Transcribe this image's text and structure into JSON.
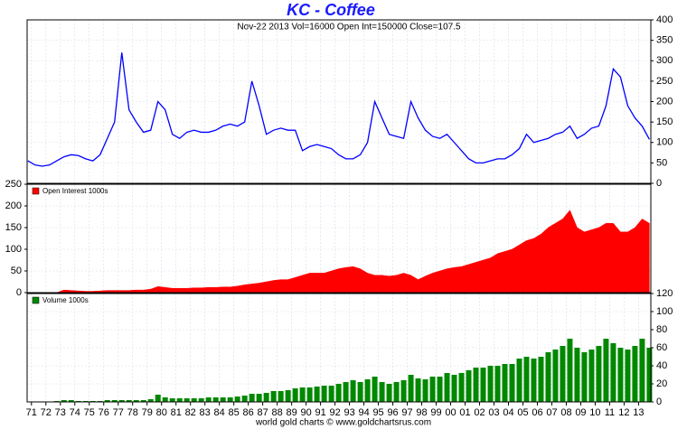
{
  "chart_data": [
    {
      "type": "line",
      "title": "KC  -  Coffee",
      "subtitle": "Nov-22  2013   Vol=16000   Open Int=150000   Close=107.5",
      "x": [
        1970.75,
        1971.25,
        1971.75,
        1972.25,
        1972.75,
        1973.25,
        1973.75,
        1974.25,
        1974.75,
        1975.25,
        1975.75,
        1976.25,
        1976.75,
        1977.25,
        1977.75,
        1978.25,
        1978.75,
        1979.25,
        1979.75,
        1980.25,
        1980.75,
        1981.25,
        1981.75,
        1982.25,
        1982.75,
        1983.25,
        1983.75,
        1984.25,
        1984.75,
        1985.25,
        1985.75,
        1986.25,
        1986.75,
        1987.25,
        1987.75,
        1988.25,
        1988.75,
        1989.25,
        1989.75,
        1990.25,
        1990.75,
        1991.25,
        1991.75,
        1992.25,
        1992.75,
        1993.25,
        1993.75,
        1994.25,
        1994.75,
        1995.25,
        1995.75,
        1996.25,
        1996.75,
        1997.25,
        1997.75,
        1998.25,
        1998.75,
        1999.25,
        1999.75,
        2000.25,
        2000.75,
        2001.25,
        2001.75,
        2002.25,
        2002.75,
        2003.25,
        2003.75,
        2004.25,
        2004.75,
        2005.25,
        2005.75,
        2006.25,
        2006.75,
        2007.25,
        2007.75,
        2008.25,
        2008.75,
        2009.25,
        2009.75,
        2010.25,
        2010.75,
        2011.25,
        2011.75,
        2012.25,
        2012.75,
        2013.25,
        2013.75
      ],
      "series": [
        {
          "color": "#0000ff",
          "values": [
            55,
            45,
            42,
            45,
            55,
            65,
            70,
            68,
            60,
            55,
            70,
            110,
            150,
            320,
            180,
            150,
            125,
            130,
            200,
            180,
            120,
            110,
            125,
            130,
            125,
            125,
            130,
            140,
            145,
            140,
            150,
            250,
            190,
            120,
            130,
            135,
            130,
            130,
            80,
            90,
            95,
            90,
            85,
            70,
            60,
            60,
            70,
            100,
            200,
            160,
            120,
            115,
            110,
            200,
            160,
            130,
            115,
            110,
            120,
            100,
            80,
            60,
            50,
            50,
            55,
            60,
            60,
            70,
            85,
            120,
            100,
            105,
            110,
            120,
            125,
            140,
            110,
            120,
            135,
            140,
            190,
            280,
            260,
            190,
            160,
            140,
            107.5
          ]
        }
      ],
      "xlim": [
        1970.7,
        2013.85
      ],
      "ylim": [
        0,
        400
      ],
      "yticks": [
        0,
        50,
        100,
        150,
        200,
        250,
        300,
        350,
        400
      ],
      "grid": true
    },
    {
      "type": "area",
      "x": [
        1970.75,
        1971.25,
        1971.75,
        1972.25,
        1972.75,
        1973.25,
        1973.75,
        1974.25,
        1974.75,
        1975.25,
        1975.75,
        1976.25,
        1976.75,
        1977.25,
        1977.75,
        1978.25,
        1978.75,
        1979.25,
        1979.75,
        1980.25,
        1980.75,
        1981.25,
        1981.75,
        1982.25,
        1982.75,
        1983.25,
        1983.75,
        1984.25,
        1984.75,
        1985.25,
        1985.75,
        1986.25,
        1986.75,
        1987.25,
        1987.75,
        1988.25,
        1988.75,
        1989.25,
        1989.75,
        1990.25,
        1990.75,
        1991.25,
        1991.75,
        1992.25,
        1992.75,
        1993.25,
        1993.75,
        1994.25,
        1994.75,
        1995.25,
        1995.75,
        1996.25,
        1996.75,
        1997.25,
        1997.75,
        1998.25,
        1998.75,
        1999.25,
        1999.75,
        2000.25,
        2000.75,
        2001.25,
        2001.75,
        2002.25,
        2002.75,
        2003.25,
        2003.75,
        2004.25,
        2004.75,
        2005.25,
        2005.75,
        2006.25,
        2006.75,
        2007.25,
        2007.75,
        2008.25,
        2008.75,
        2009.25,
        2009.75,
        2010.25,
        2010.75,
        2011.25,
        2011.75,
        2012.25,
        2012.75,
        2013.25,
        2013.75
      ],
      "series": [
        {
          "name": "Open Interest 1000s",
          "color": "#ff0000",
          "values": [
            0,
            0,
            0,
            0,
            0,
            6,
            5,
            4,
            3,
            3,
            4,
            5,
            5,
            5,
            5,
            6,
            6,
            8,
            14,
            12,
            10,
            10,
            10,
            11,
            11,
            12,
            12,
            13,
            13,
            15,
            18,
            20,
            22,
            25,
            28,
            30,
            30,
            35,
            40,
            45,
            45,
            45,
            50,
            55,
            58,
            60,
            55,
            45,
            40,
            40,
            38,
            40,
            45,
            40,
            30,
            38,
            45,
            50,
            55,
            58,
            60,
            65,
            70,
            75,
            80,
            90,
            95,
            100,
            110,
            120,
            125,
            135,
            150,
            160,
            170,
            190,
            150,
            140,
            145,
            150,
            160,
            160,
            140,
            140,
            150,
            170,
            160
          ]
        }
      ],
      "xlim": [
        1970.7,
        2013.85
      ],
      "ylim": [
        0,
        250
      ],
      "yticks": [
        0,
        50,
        100,
        150,
        200,
        250
      ],
      "grid": true,
      "legend": "top-left"
    },
    {
      "type": "bar",
      "x": [
        1970.75,
        1971.25,
        1971.75,
        1972.25,
        1972.75,
        1973.25,
        1973.75,
        1974.25,
        1974.75,
        1975.25,
        1975.75,
        1976.25,
        1976.75,
        1977.25,
        1977.75,
        1978.25,
        1978.75,
        1979.25,
        1979.75,
        1980.25,
        1980.75,
        1981.25,
        1981.75,
        1982.25,
        1982.75,
        1983.25,
        1983.75,
        1984.25,
        1984.75,
        1985.25,
        1985.75,
        1986.25,
        1986.75,
        1987.25,
        1987.75,
        1988.25,
        1988.75,
        1989.25,
        1989.75,
        1990.25,
        1990.75,
        1991.25,
        1991.75,
        1992.25,
        1992.75,
        1993.25,
        1993.75,
        1994.25,
        1994.75,
        1995.25,
        1995.75,
        1996.25,
        1996.75,
        1997.25,
        1997.75,
        1998.25,
        1998.75,
        1999.25,
        1999.75,
        2000.25,
        2000.75,
        2001.25,
        2001.75,
        2002.25,
        2002.75,
        2003.25,
        2003.75,
        2004.25,
        2004.75,
        2005.25,
        2005.75,
        2006.25,
        2006.75,
        2007.25,
        2007.75,
        2008.25,
        2008.75,
        2009.25,
        2009.75,
        2010.25,
        2010.75,
        2011.25,
        2011.75,
        2012.25,
        2012.75,
        2013.25,
        2013.75
      ],
      "series": [
        {
          "name": "Volume 1000s",
          "color": "#008800",
          "values": [
            0,
            0,
            0,
            0,
            1,
            2,
            2,
            1,
            1,
            1,
            1,
            2,
            2,
            2,
            2,
            2,
            2,
            3,
            8,
            5,
            4,
            4,
            4,
            4,
            4,
            5,
            5,
            5,
            5,
            6,
            7,
            9,
            9,
            10,
            12,
            12,
            13,
            15,
            16,
            16,
            17,
            18,
            18,
            20,
            22,
            24,
            22,
            25,
            28,
            22,
            20,
            22,
            24,
            30,
            26,
            25,
            28,
            28,
            32,
            30,
            32,
            35,
            38,
            38,
            40,
            40,
            42,
            42,
            48,
            50,
            48,
            50,
            55,
            58,
            62,
            70,
            60,
            55,
            58,
            62,
            70,
            65,
            60,
            58,
            62,
            70,
            60
          ]
        }
      ],
      "xlim": [
        1970.7,
        2013.85
      ],
      "ylim": [
        0,
        120
      ],
      "yticks": [
        0,
        20,
        40,
        60,
        80,
        100,
        120
      ],
      "grid": true,
      "legend": "top-left",
      "xticks": [
        {
          "value": 1971,
          "label": "71"
        },
        {
          "value": 1972,
          "label": "72"
        },
        {
          "value": 1973,
          "label": "73"
        },
        {
          "value": 1974,
          "label": "74"
        },
        {
          "value": 1975,
          "label": "75"
        },
        {
          "value": 1976,
          "label": "76"
        },
        {
          "value": 1977,
          "label": "77"
        },
        {
          "value": 1978,
          "label": "78"
        },
        {
          "value": 1979,
          "label": "79"
        },
        {
          "value": 1980,
          "label": "80"
        },
        {
          "value": 1981,
          "label": "81"
        },
        {
          "value": 1982,
          "label": "82"
        },
        {
          "value": 1983,
          "label": "83"
        },
        {
          "value": 1984,
          "label": "84"
        },
        {
          "value": 1985,
          "label": "85"
        },
        {
          "value": 1986,
          "label": "86"
        },
        {
          "value": 1987,
          "label": "87"
        },
        {
          "value": 1988,
          "label": "88"
        },
        {
          "value": 1989,
          "label": "89"
        },
        {
          "value": 1990,
          "label": "90"
        },
        {
          "value": 1991,
          "label": "91"
        },
        {
          "value": 1992,
          "label": "92"
        },
        {
          "value": 1993,
          "label": "93"
        },
        {
          "value": 1994,
          "label": "94"
        },
        {
          "value": 1995,
          "label": "95"
        },
        {
          "value": 1996,
          "label": "96"
        },
        {
          "value": 1997,
          "label": "97"
        },
        {
          "value": 1998,
          "label": "98"
        },
        {
          "value": 1999,
          "label": "99"
        },
        {
          "value": 2000,
          "label": "00"
        },
        {
          "value": 2001,
          "label": "01"
        },
        {
          "value": 2002,
          "label": "02"
        },
        {
          "value": 2003,
          "label": "03"
        },
        {
          "value": 2004,
          "label": "04"
        },
        {
          "value": 2005,
          "label": "05"
        },
        {
          "value": 2006,
          "label": "06"
        },
        {
          "value": 2007,
          "label": "07"
        },
        {
          "value": 2008,
          "label": "08"
        },
        {
          "value": 2009,
          "label": "09"
        },
        {
          "value": 2010,
          "label": "10"
        },
        {
          "value": 2011,
          "label": "11"
        },
        {
          "value": 2012,
          "label": "12"
        },
        {
          "value": 2013,
          "label": "13"
        }
      ]
    }
  ],
  "footer": "world gold charts © www.goldchartsrus.com"
}
